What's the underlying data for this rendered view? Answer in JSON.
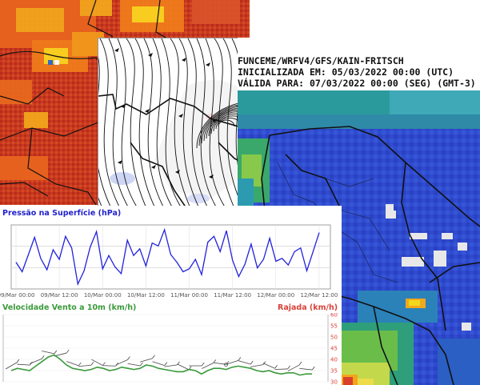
{
  "precip_header": {
    "line1": "FUNCEME/WRFV4/GFS/KAIN-FRITSCH",
    "line2": "INICIALIZADA EM: 05/03/2022 00:00 (UTC)",
    "line3": "VÁLIDA PARA: 07/03/2022 00:00 (SEG) (GMT-3)"
  },
  "colors": {
    "heat_bg": "#c0321f",
    "precip_bg": "#2f4bd0",
    "pressure_line": "#2222dd",
    "wind_line": "#3a9a3a",
    "gust_axis": "#d9413a"
  },
  "chart_data": [
    {
      "type": "line",
      "title": "Pressão na Superfície (hPa)",
      "x_tick_labels": [
        "09/Mar 00:00",
        "09/Mar 12:00",
        "10/Mar 00:00",
        "10/Mar 12:00",
        "11/Mar 00:00",
        "11/Mar 12:00",
        "12/Mar 00:00",
        "12/Mar 12:00"
      ],
      "grid": true,
      "series": [
        {
          "values": [
            1011.2,
            1010.2,
            1012.0,
            1013.8,
            1011.6,
            1010.4,
            1012.5,
            1011.5,
            1013.9,
            1012.7,
            1008.9,
            1010.3,
            1012.8,
            1014.4,
            1010.5,
            1011.9,
            1010.7,
            1010.0,
            1013.5,
            1011.9,
            1012.6,
            1010.8,
            1013.2,
            1012.9,
            1014.6,
            1012.0,
            1011.2,
            1010.2,
            1010.5,
            1011.5,
            1009.9,
            1013.3,
            1013.9,
            1012.3,
            1014.5,
            1011.4,
            1009.7,
            1011.0,
            1013.1,
            1010.6,
            1011.5,
            1013.7,
            1011.3,
            1011.6,
            1010.9,
            1012.3,
            1012.7,
            1010.3,
            1012.3,
            1014.3
          ]
        }
      ]
    },
    {
      "type": "line",
      "title": "Velocidade Vento a 10m (km/h)",
      "y2_label": "Rajada (km/h)",
      "y2_ticks": [
        "60",
        "55",
        "50",
        "45",
        "40",
        "35",
        "30"
      ],
      "ylim": [
        30,
        60
      ],
      "series": [
        {
          "values": [
            35.0,
            36.0,
            35.5,
            35.0,
            37.0,
            39.0,
            41.0,
            42.0,
            40.0,
            37.5,
            36.0,
            35.5,
            35.0,
            35.5,
            36.5,
            36.0,
            35.0,
            35.5,
            36.5,
            36.0,
            35.5,
            36.0,
            37.5,
            37.0,
            36.0,
            35.5,
            35.0,
            34.5,
            34.5,
            35.5,
            35.0,
            33.5,
            35.0,
            36.0,
            36.0,
            35.5,
            36.5,
            37.0,
            36.5,
            36.0,
            35.0,
            34.5,
            35.0,
            34.0,
            33.5,
            34.0,
            34.0,
            33.0,
            33.5,
            33.5
          ]
        }
      ]
    }
  ]
}
